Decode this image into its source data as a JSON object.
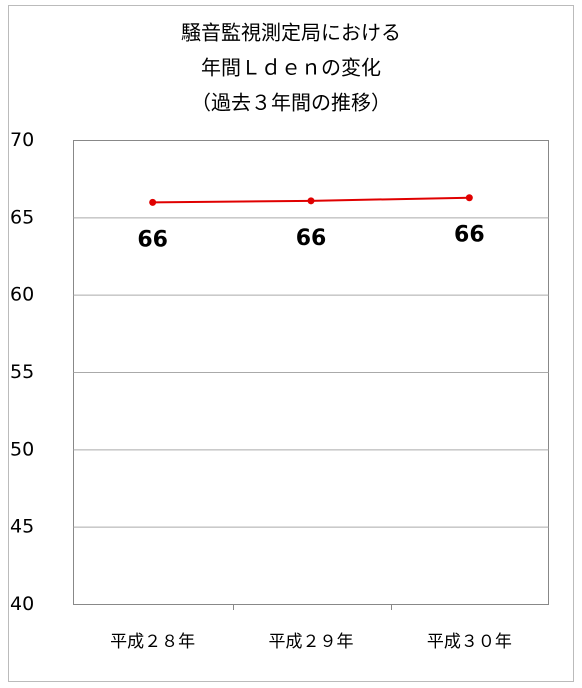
{
  "chart_data": {
    "type": "line",
    "title": [
      "騒音監視測定局における",
      "年間Ｌｄｅｎの変化",
      "（過去３年間の推移）"
    ],
    "categories": [
      "平成２８年",
      "平成２９年",
      "平成３０年"
    ],
    "series": [
      {
        "color": "#e00000",
        "values": [
          66.0,
          66.1,
          66.3
        ],
        "value_labels": [
          "66",
          "66",
          "66"
        ]
      }
    ],
    "ylim": [
      40,
      70
    ],
    "yticks": [
      40,
      45,
      50,
      55,
      60,
      65,
      70
    ],
    "grid": true
  }
}
